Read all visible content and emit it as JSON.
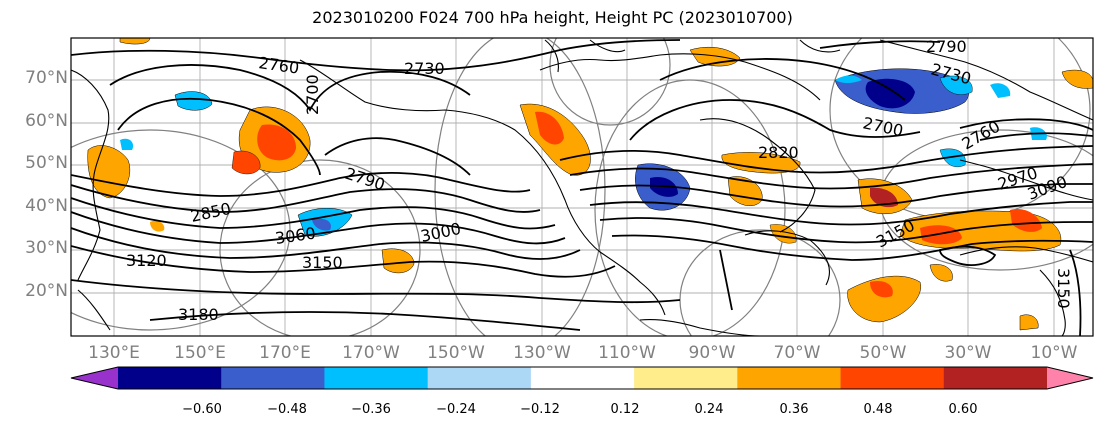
{
  "title": "2023010200 F024 700 hPa height, Height PC (2023010700)",
  "map": {
    "lat_range": [
      10,
      80
    ],
    "lon_range": [
      120,
      355
    ],
    "lat_ticks": [
      "70°N",
      "60°N",
      "50°N",
      "40°N",
      "30°N",
      "20°N"
    ],
    "lon_ticks": [
      "130°E",
      "150°E",
      "170°E",
      "170°W",
      "150°W",
      "130°W",
      "110°W",
      "90°W",
      "70°W",
      "50°W",
      "30°W",
      "10°W"
    ],
    "contour_labels": [
      {
        "text": "2760"
      },
      {
        "text": "2730"
      },
      {
        "text": "2700"
      },
      {
        "text": "2790"
      },
      {
        "text": "2850"
      },
      {
        "text": "3060"
      },
      {
        "text": "3000"
      },
      {
        "text": "3120"
      },
      {
        "text": "3150"
      },
      {
        "text": "3180"
      },
      {
        "text": "2820"
      },
      {
        "text": "2790"
      },
      {
        "text": "2730"
      },
      {
        "text": "2760"
      },
      {
        "text": "2700"
      },
      {
        "text": "2970"
      },
      {
        "text": "3090"
      },
      {
        "text": "3150"
      },
      {
        "text": "3150"
      }
    ]
  },
  "colorbar": {
    "labels": [
      "−0.60",
      "−0.48",
      "−0.36",
      "−0.24",
      "−0.12",
      "0.12",
      "0.24",
      "0.36",
      "0.48",
      "0.60"
    ],
    "colors": [
      "#9932cc",
      "#00008b",
      "#3a5fcd",
      "#00bfff",
      "#add8f5",
      "#ffffff",
      "#ffec8b",
      "#ffa500",
      "#ff4500",
      "#b22222",
      "#ff82ab"
    ]
  }
}
